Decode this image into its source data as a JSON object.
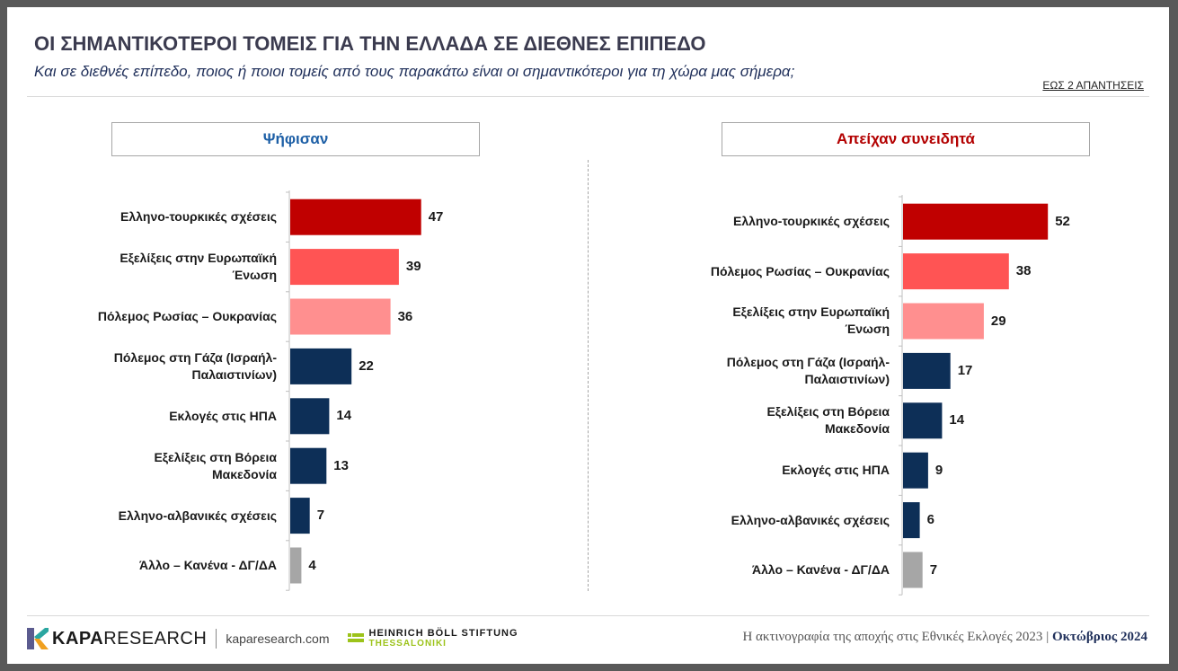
{
  "header": {
    "title": "ΟΙ ΣΗΜΑΝΤΙΚΟΤΕΡΟΙ ΤΟΜΕΙΣ ΓΙΑ ΤΗΝ ΕΛΛΑΔΑ ΣΕ ΔΙΕΘΝΕΣ ΕΠΙΠΕΔΟ",
    "subtitle": "Και σε διεθνές επίπεδο, ποιος ή ποιοι τομείς από τους παρακάτω είναι οι σημαντικότεροι για τη χώρα μας σήμερα;",
    "note": "ΕΩΣ 2 ΑΠΑΝΤΗΣΕΙΣ"
  },
  "panels": {
    "left_title": "Ψήφισαν",
    "right_title": "Απείχαν συνειδητά"
  },
  "colors": {
    "dark_red": "#c00000",
    "red": "#ff5454",
    "pink": "#ff8f8f",
    "navy": "#0d2f57",
    "gray": "#a6a6a6",
    "left_header": "#1d5fa6",
    "right_header": "#b30000"
  },
  "chart_data": [
    {
      "type": "bar",
      "orientation": "horizontal",
      "title": "Ψήφισαν",
      "categories": [
        "Ελληνο-τουρκικές σχέσεις",
        "Εξελίξεις στην Ευρωπαϊκή Ένωση",
        "Πόλεμος Ρωσίας – Ουκρανίας",
        "Πόλεμος στη Γάζα (Ισραήλ-Παλαιστινίων)",
        "Εκλογές στις ΗΠΑ",
        "Εξελίξεις στη Βόρεια Μακεδονία",
        "Ελληνο-αλβανικές σχέσεις",
        "Άλλο – Κανένα - ΔΓ/ΔΑ"
      ],
      "category_lines": [
        [
          "Ελληνο-τουρκικές σχέσεις"
        ],
        [
          "Εξελίξεις στην Ευρωπαϊκή",
          "Ένωση"
        ],
        [
          "Πόλεμος Ρωσίας – Ουκρανίας"
        ],
        [
          "Πόλεμος στη Γάζα (Ισραήλ-",
          "Παλαιστινίων)"
        ],
        [
          "Εκλογές στις ΗΠΑ"
        ],
        [
          "Εξελίξεις στη Βόρεια",
          "Μακεδονία"
        ],
        [
          "Ελληνο-αλβανικές σχέσεις"
        ],
        [
          "Άλλο – Κανένα - ΔΓ/ΔΑ"
        ]
      ],
      "values": [
        47,
        39,
        36,
        22,
        14,
        13,
        7,
        4
      ],
      "bar_colors": [
        "#c00000",
        "#ff5454",
        "#ff8f8f",
        "#0d2f57",
        "#0d2f57",
        "#0d2f57",
        "#0d2f57",
        "#a6a6a6"
      ],
      "xlim": [
        0,
        100
      ],
      "data_labels": true,
      "grid": false
    },
    {
      "type": "bar",
      "orientation": "horizontal",
      "title": "Απείχαν συνειδητά",
      "categories": [
        "Ελληνο-τουρκικές σχέσεις",
        "Πόλεμος Ρωσίας – Ουκρανίας",
        "Εξελίξεις στην Ευρωπαϊκή Ένωση",
        "Πόλεμος στη Γάζα (Ισραήλ-Παλαιστινίων)",
        "Εξελίξεις στη Βόρεια Μακεδονία",
        "Εκλογές στις ΗΠΑ",
        "Ελληνο-αλβανικές σχέσεις",
        "Άλλο – Κανένα - ΔΓ/ΔΑ"
      ],
      "category_lines": [
        [
          "Ελληνο-τουρκικές σχέσεις"
        ],
        [
          "Πόλεμος Ρωσίας – Ουκρανίας"
        ],
        [
          "Εξελίξεις στην Ευρωπαϊκή",
          "Ένωση"
        ],
        [
          "Πόλεμος στη Γάζα (Ισραήλ-",
          "Παλαιστινίων)"
        ],
        [
          "Εξελίξεις στη Βόρεια",
          "Μακεδονία"
        ],
        [
          "Εκλογές στις ΗΠΑ"
        ],
        [
          "Ελληνο-αλβανικές σχέσεις"
        ],
        [
          "Άλλο – Κανένα - ΔΓ/ΔΑ"
        ]
      ],
      "values": [
        52,
        38,
        29,
        17,
        14,
        9,
        6,
        7
      ],
      "bar_colors": [
        "#c00000",
        "#ff5454",
        "#ff8f8f",
        "#0d2f57",
        "#0d2f57",
        "#0d2f57",
        "#0d2f57",
        "#a6a6a6"
      ],
      "xlim": [
        0,
        100
      ],
      "data_labels": true,
      "grid": false
    }
  ],
  "footer": {
    "logo_icon": "kapa-k-icon",
    "brand_bold": "KAPA",
    "brand_light": "RESEARCH",
    "site": "kaparesearch.com",
    "partner_icon": "boll-flag-icon",
    "partner_line1": "HEINRICH BÖLL STIFTUNG",
    "partner_line2": "THESSALONIKI",
    "caption": "Η ακτινογραφία της αποχής στις Εθνικές Εκλογές 2023",
    "separator": "|",
    "month": "Οκτώβριος 2024"
  }
}
